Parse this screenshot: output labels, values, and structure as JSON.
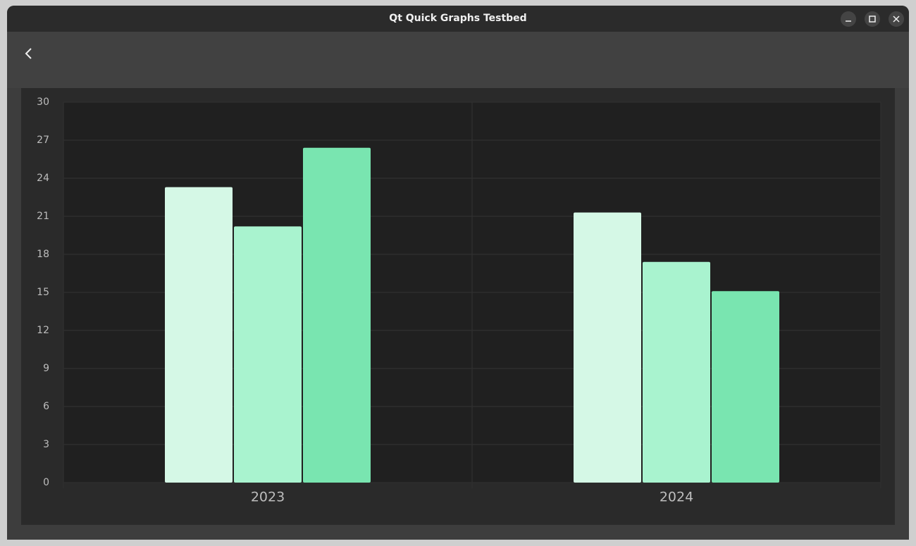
{
  "window_title": "Qt Quick Graphs Testbed",
  "chart_data": {
    "type": "bar",
    "categories": [
      "2023",
      "2024"
    ],
    "series": [
      {
        "color": "#d5f8e6",
        "values": [
          23.3,
          21.3
        ]
      },
      {
        "color": "#a9f3cf",
        "values": [
          20.2,
          17.4
        ]
      },
      {
        "color": "#79e5b0",
        "values": [
          26.4,
          15.1
        ]
      }
    ],
    "ylim": [
      0,
      30
    ],
    "yticks": [
      0,
      3,
      6,
      9,
      12,
      15,
      18,
      21,
      24,
      27,
      30
    ],
    "grid": true
  }
}
